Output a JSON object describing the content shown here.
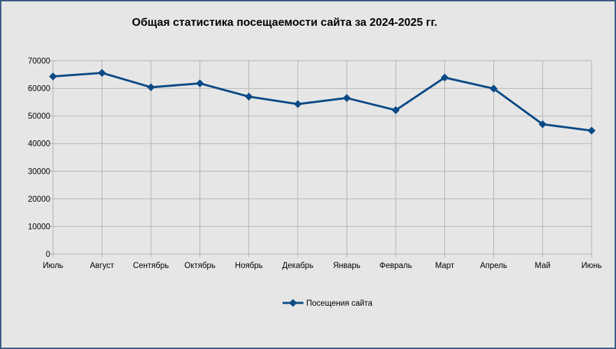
{
  "chart_data": {
    "type": "line",
    "title": "Общая статистика посещаемости сайта за 2024-2025 гг.",
    "xlabel": "",
    "ylabel": "",
    "categories": [
      "Июль",
      "Август",
      "Сентябрь",
      "Октябрь",
      "Ноябрь",
      "Декабрь",
      "Январь",
      "Февраль",
      "Март",
      "Апрель",
      "Май",
      "Июнь"
    ],
    "series": [
      {
        "name": "Посещения сайта",
        "values": [
          64300,
          65600,
          60400,
          61800,
          57000,
          54300,
          56500,
          52100,
          63900,
          59900,
          47000,
          44700
        ],
        "color": "#0b4a86",
        "marker": "diamond"
      }
    ],
    "ylim": [
      0,
      70000
    ],
    "yticks": [
      "0",
      "10000",
      "20000",
      "30000",
      "40000",
      "50000",
      "60000",
      "70000"
    ],
    "grid": true,
    "legend_position": "bottom"
  }
}
